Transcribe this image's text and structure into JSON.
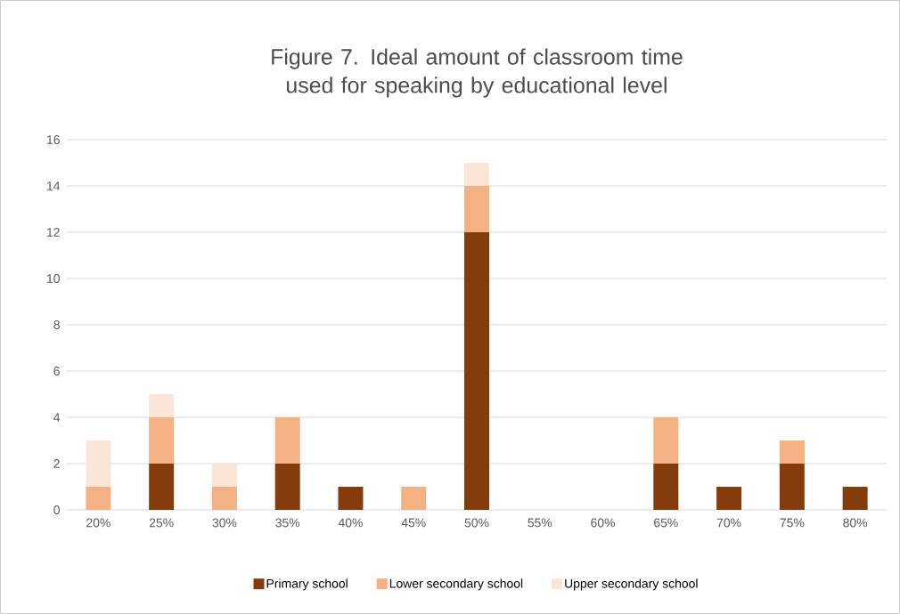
{
  "chart_data": {
    "type": "bar",
    "stacked": true,
    "title": "Figure 7. Ideal amount of classroom time used for speaking by educational level",
    "categories": [
      "20%",
      "25%",
      "30%",
      "35%",
      "40%",
      "45%",
      "50%",
      "55%",
      "60%",
      "65%",
      "70%",
      "75%",
      "80%"
    ],
    "series": [
      {
        "name": "Primary school",
        "color": "#843c0c",
        "values": [
          0,
          2,
          0,
          2,
          1,
          0,
          12,
          0,
          0,
          2,
          1,
          2,
          1
        ]
      },
      {
        "name": "Lower secondary school",
        "color": "#f4b183",
        "values": [
          1,
          2,
          1,
          2,
          0,
          1,
          2,
          0,
          0,
          2,
          0,
          1,
          0
        ]
      },
      {
        "name": "Upper secondary school",
        "color": "#fbe5d6",
        "values": [
          2,
          1,
          1,
          0,
          0,
          0,
          1,
          0,
          0,
          0,
          0,
          0,
          0
        ]
      }
    ],
    "ylim": [
      0,
      16
    ],
    "yticks": [
      0,
      2,
      4,
      6,
      8,
      10,
      12,
      14,
      16
    ],
    "grid": "y",
    "legend": "bottom"
  }
}
